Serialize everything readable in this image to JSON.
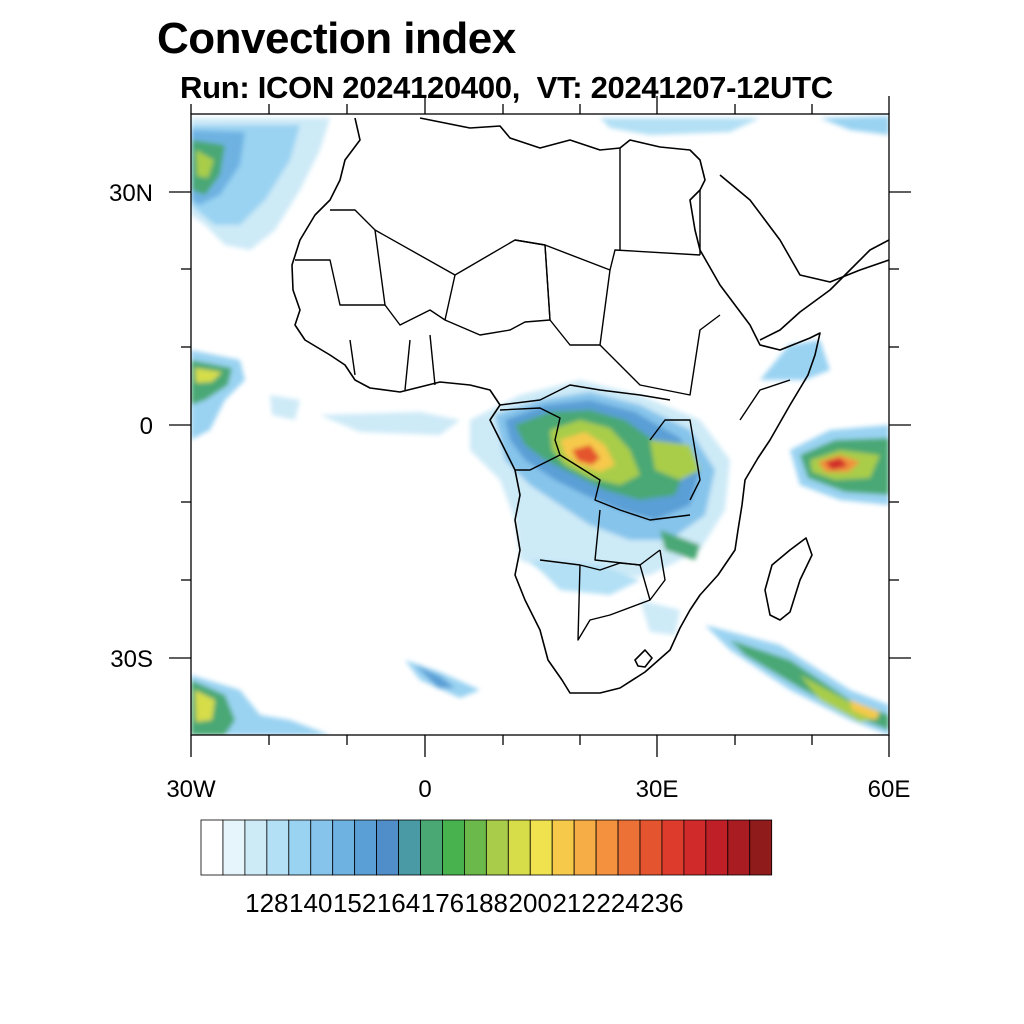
{
  "title": "Convection index",
  "subtitle": "Run: ICON 2024120400,  VT: 20241207-12UTC",
  "axes": {
    "lon_ticks": [
      "30W",
      "0",
      "30E",
      "60E"
    ],
    "lat_ticks": [
      "30N",
      "0",
      "30S"
    ]
  },
  "colorbar": {
    "labels": [
      "128",
      "140",
      "152",
      "164",
      "176",
      "188",
      "200",
      "212",
      "224",
      "236"
    ],
    "colors": [
      "#ffffff",
      "#e6f4fb",
      "#cdeaf7",
      "#b3e0f5",
      "#9ad3f2",
      "#86c4eb",
      "#6eb2e2",
      "#5a9fd6",
      "#4f8ec8",
      "#4a9aa6",
      "#4aa874",
      "#47b24e",
      "#6ab94a",
      "#a9cd4a",
      "#d6dd48",
      "#f0e24e",
      "#f6c94b",
      "#f6ad45",
      "#f3913e",
      "#ec7136",
      "#e4552f",
      "#dd3c2c",
      "#d12a2a",
      "#bf1f27",
      "#a81c22",
      "#8f1b1b"
    ]
  }
}
